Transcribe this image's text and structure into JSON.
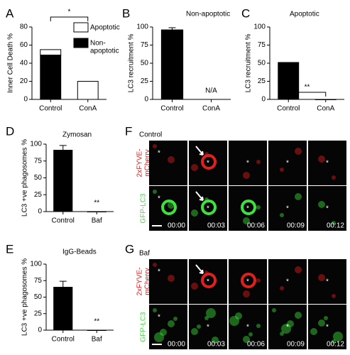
{
  "chart_data": [
    {
      "type": "bar",
      "panel": "A",
      "ylabel": "Inner Cell Death %",
      "categories": [
        "Control",
        "ConA"
      ],
      "stacked": true,
      "series": [
        {
          "name": "Non-\napoptotic",
          "color": "#000000",
          "values": [
            49,
            0
          ]
        },
        {
          "name": "Apoptotic",
          "color": "#ffffff",
          "values": [
            6,
            20
          ]
        }
      ],
      "ylim": [
        0,
        80
      ],
      "yticks": [
        0,
        20,
        40,
        60,
        80
      ],
      "significance": "*"
    },
    {
      "type": "bar",
      "panel": "B",
      "title": "Non-apoptotic",
      "ylabel": "LC3 recruitment %",
      "categories": [
        "Control",
        "ConA"
      ],
      "values": [
        96,
        null
      ],
      "errors": [
        3,
        null
      ],
      "color": "#000000",
      "bar_annotations": [
        null,
        "N/A"
      ],
      "ylim": [
        0,
        100
      ],
      "yticks": [
        0,
        25,
        50,
        75,
        100
      ]
    },
    {
      "type": "bar",
      "panel": "C",
      "title": "Apoptotic",
      "ylabel": "LC3 recruitment %",
      "categories": [
        "Control",
        "ConA"
      ],
      "values": [
        51,
        0
      ],
      "color": "#000000",
      "significance": "**",
      "ylim": [
        0,
        100
      ],
      "yticks": [
        0,
        25,
        50,
        75,
        100
      ]
    },
    {
      "type": "bar",
      "panel": "D",
      "title": "Zymosan",
      "ylabel": "LC3 +ve phagosomes %",
      "categories": [
        "Control",
        "Baf"
      ],
      "values": [
        91,
        0
      ],
      "errors": [
        7,
        null
      ],
      "color": "#000000",
      "bar_annotations": [
        null,
        "**"
      ],
      "ylim": [
        0,
        100
      ],
      "yticks": [
        0,
        25,
        50,
        75,
        100
      ]
    },
    {
      "type": "bar",
      "panel": "E",
      "title": "IgG-Beads",
      "ylabel": "LC3 +ve phagosomes %",
      "categories": [
        "Control",
        "Baf"
      ],
      "values": [
        65,
        0
      ],
      "errors": [
        9,
        null
      ],
      "color": "#000000",
      "bar_annotations": [
        null,
        "**"
      ],
      "ylim": [
        0,
        100
      ],
      "yticks": [
        0,
        25,
        50,
        75,
        100
      ]
    }
  ],
  "image_panels": [
    {
      "panel": "F",
      "condition": "Control",
      "rows": [
        "2xFYVE-\nmCherry",
        "GFP-LC3"
      ],
      "times": [
        "00:00",
        "00:03",
        "00:06",
        "00:09",
        "00:12"
      ],
      "cell_marker": "*"
    },
    {
      "panel": "G",
      "condition": "Baf",
      "rows": [
        "2xFYVE-\nmCherry",
        "GFP-LC3"
      ],
      "times": [
        "00:00",
        "00:03",
        "00:06",
        "00:09",
        "00:12"
      ],
      "cell_marker": "*"
    }
  ]
}
